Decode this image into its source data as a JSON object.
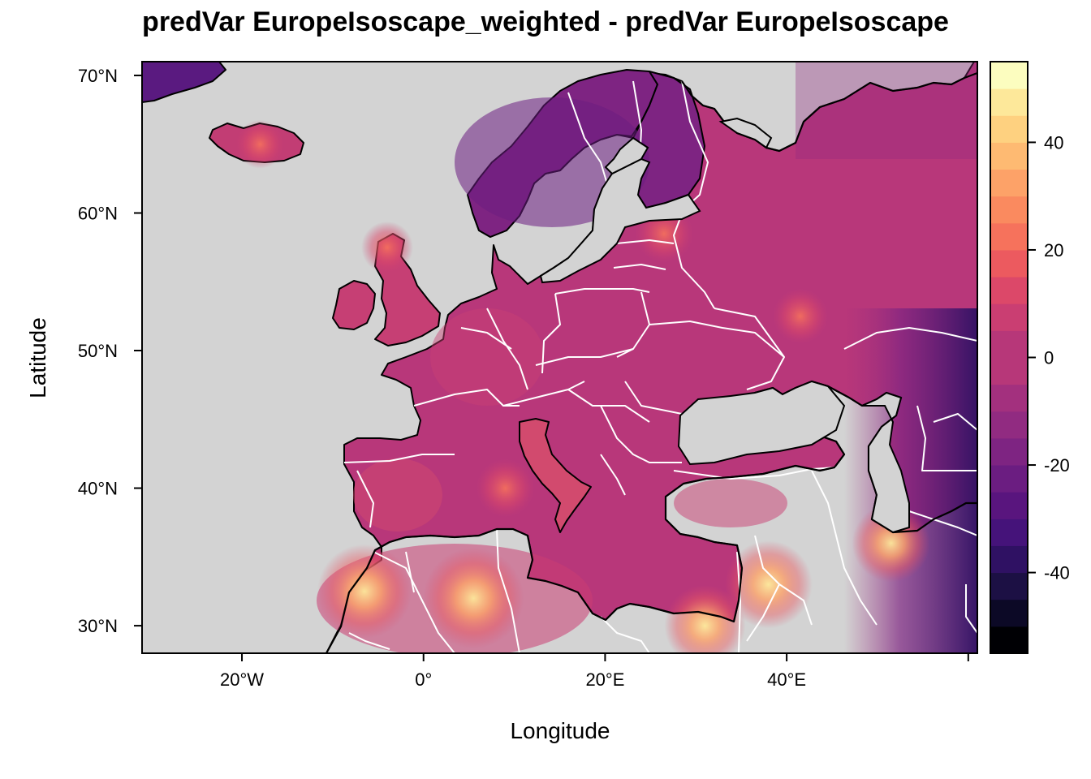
{
  "title": "predVar EuropeIsoscape_weighted - predVar EuropeIsoscape",
  "colors": {
    "ocean": "#d3d3d3",
    "coastline": "#000000",
    "borders": "#ffffff",
    "palette_magma_low_to_high": [
      "#000004",
      "#0c0926",
      "#1c1044",
      "#2f1163",
      "#45137a",
      "#59157e",
      "#6b1d81",
      "#7e2482",
      "#912b81",
      "#a3307e",
      "#b73779",
      "#ca3e72",
      "#dc4869",
      "#ec5a5f",
      "#f6725c",
      "#fa8a5f",
      "#fda268",
      "#feba72",
      "#fed180",
      "#fde89a",
      "#fcfdbf"
    ]
  },
  "map": {
    "projection": "longlat",
    "extent": {
      "lon_min": -31,
      "lon_max": 61,
      "lat_min": 28,
      "lat_max": 71
    },
    "xlabel": "Longitude",
    "ylabel": "Latitude",
    "x_ticks": [
      {
        "value": -20,
        "label": "20°W"
      },
      {
        "value": 0,
        "label": "0°"
      },
      {
        "value": 20,
        "label": "20°E"
      },
      {
        "value": 40,
        "label": "40°E"
      }
    ],
    "y_ticks": [
      {
        "value": 30,
        "label": "30°N"
      },
      {
        "value": 40,
        "label": "40°N"
      },
      {
        "value": 50,
        "label": "50°N"
      },
      {
        "value": 60,
        "label": "60°N"
      },
      {
        "value": 70,
        "label": "70°N"
      }
    ],
    "hotspots": [
      {
        "name": "western Morocco",
        "lon": -6.5,
        "lat": 32.5,
        "value": 30
      },
      {
        "name": "central Algeria",
        "lon": 5.5,
        "lat": 32,
        "value": 34
      },
      {
        "name": "Egypt",
        "lon": 31,
        "lat": 30,
        "value": 22
      },
      {
        "name": "Jordan",
        "lon": 38,
        "lat": 33,
        "value": 26
      },
      {
        "name": "southern Iran",
        "lon": 51.5,
        "lat": 36,
        "value": 20
      },
      {
        "name": "Sardinia",
        "lon": 9,
        "lat": 40,
        "value": 14
      },
      {
        "name": "Estonia",
        "lon": 26.5,
        "lat": 58.5,
        "value": 14
      },
      {
        "name": "southern Russia",
        "lon": 41.5,
        "lat": 52.5,
        "value": 12
      },
      {
        "name": "Iceland",
        "lon": -18,
        "lat": 65,
        "value": 8
      },
      {
        "name": "Scotland",
        "lon": -4,
        "lat": 57.5,
        "value": 10
      }
    ]
  },
  "legend": {
    "breaks_min": -55,
    "breaks_max": 55,
    "step": 5,
    "ticks": [
      {
        "value": 40,
        "label": "40"
      },
      {
        "value": 20,
        "label": "20"
      },
      {
        "value": 0,
        "label": "0"
      },
      {
        "value": -20,
        "label": "-20"
      },
      {
        "value": -40,
        "label": "-40"
      }
    ]
  }
}
